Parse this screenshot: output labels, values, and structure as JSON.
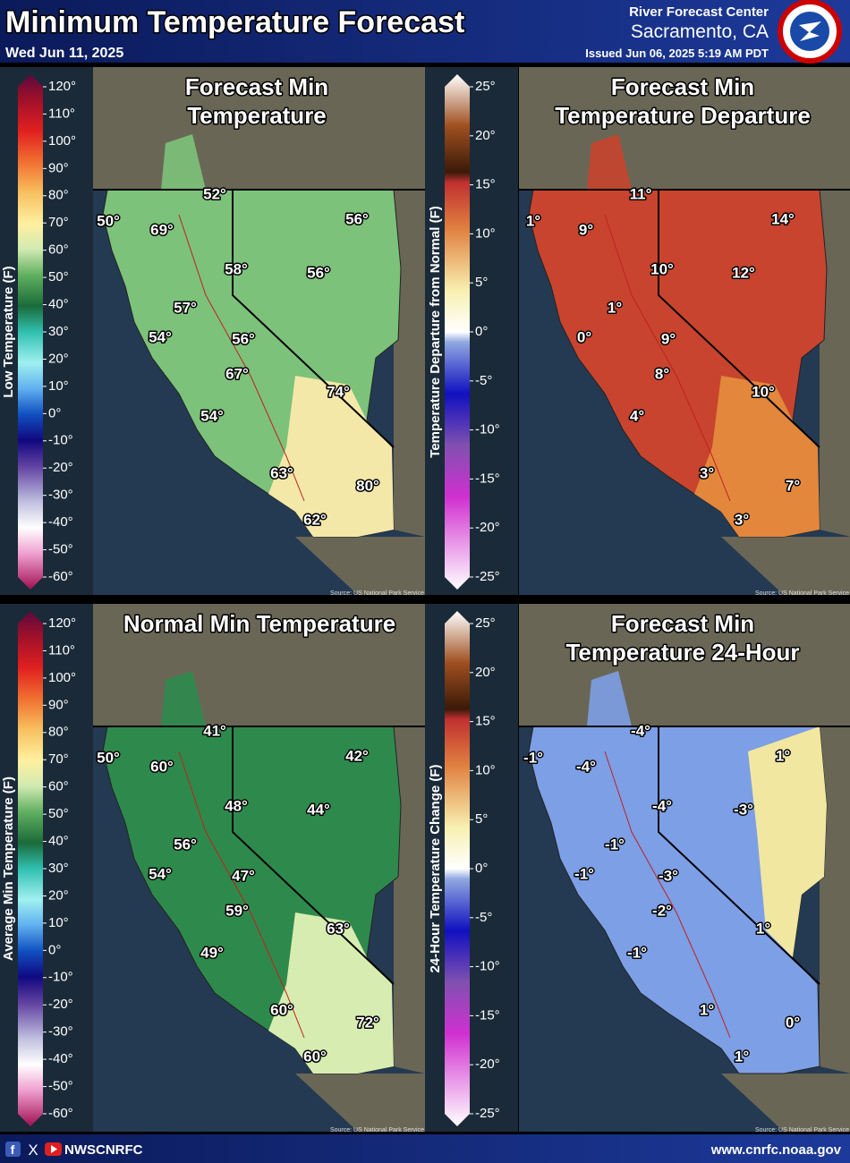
{
  "header": {
    "title": "Minimum Temperature Forecast",
    "date": "Wed Jun 11, 2025",
    "center": "River Forecast Center",
    "location": "Sacramento, CA",
    "issued": "Issued Jun 06, 2025 5:19 AM PDT"
  },
  "panels": [
    {
      "title": [
        "Forecast Min",
        "Temperature"
      ],
      "legend": {
        "label": "Low Temperature (F)",
        "ticks": [
          "120°",
          "110°",
          "100°",
          "90°",
          "80°",
          "70°",
          "60°",
          "50°",
          "40°",
          "30°",
          "20°",
          "10°",
          "0°",
          "-10°",
          "-20°",
          "-30°",
          "-40°",
          "-50°",
          "-60°"
        ]
      },
      "labels": [
        "50°",
        "52°",
        "69°",
        "56°",
        "58°",
        "56°",
        "57°",
        "54°",
        "56°",
        "67°",
        "74°",
        "54°",
        "63°",
        "80°",
        "62°"
      ],
      "source": "Source: US National Park Service"
    },
    {
      "title": [
        "Forecast Min",
        "Temperature Departure"
      ],
      "legend": {
        "label": "Temperature Departure from Normal (F)",
        "ticks": [
          "25°",
          "20°",
          "15°",
          "10°",
          "5°",
          "0°",
          "-5°",
          "-10°",
          "-15°",
          "-20°",
          "-25°"
        ]
      },
      "labels": [
        "1°",
        "11°",
        "9°",
        "14°",
        "10°",
        "12°",
        "1°",
        "0°",
        "9°",
        "8°",
        "10°",
        "4°",
        "3°",
        "7°",
        "3°"
      ],
      "source": "Source: US National Park Service"
    },
    {
      "title": [
        "Normal Min Temperature"
      ],
      "legend": {
        "label": "Average Min Temperature (F)",
        "ticks": [
          "120°",
          "110°",
          "100°",
          "90°",
          "80°",
          "70°",
          "60°",
          "50°",
          "40°",
          "30°",
          "20°",
          "10°",
          "0°",
          "-10°",
          "-20°",
          "-30°",
          "-40°",
          "-50°",
          "-60°"
        ]
      },
      "labels": [
        "50°",
        "41°",
        "60°",
        "42°",
        "48°",
        "44°",
        "56°",
        "54°",
        "47°",
        "59°",
        "63°",
        "49°",
        "60°",
        "72°",
        "60°"
      ],
      "source": "Source: US National Park Service"
    },
    {
      "title": [
        "Forecast Min",
        "Temperature 24-Hour"
      ],
      "legend": {
        "label": "24-Hour Temperature Change (F)",
        "ticks": [
          "25°",
          "20°",
          "15°",
          "10°",
          "5°",
          "0°",
          "-5°",
          "-10°",
          "-15°",
          "-20°",
          "-25°"
        ]
      },
      "labels": [
        "-1°",
        "-4°",
        "-4°",
        "1°",
        "-4°",
        "-3°",
        "-1°",
        "-1°",
        "-3°",
        "-2°",
        "1°",
        "-1°",
        "1°",
        "0°",
        "1°"
      ],
      "source": "Source: US National Park Service"
    }
  ],
  "footer": {
    "handle": "NWSCNRFC",
    "url": "www.cnrfc.noaa.gov"
  }
}
